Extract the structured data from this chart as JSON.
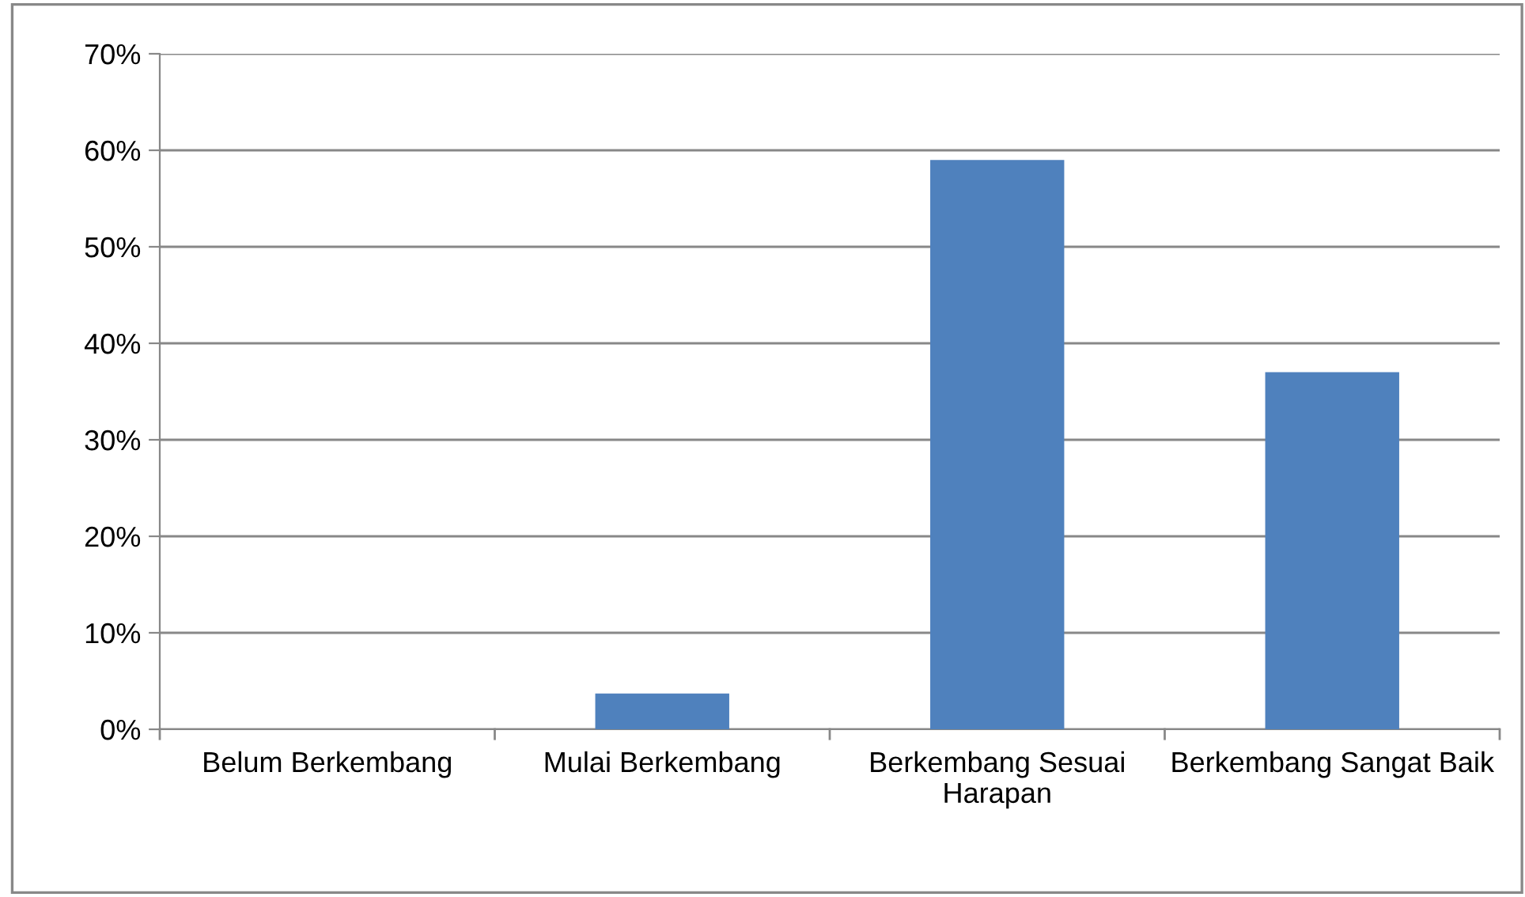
{
  "chart_data": {
    "type": "bar",
    "categories": [
      "Belum Berkembang",
      "Mulai Berkembang",
      "Berkembang Sesuai Harapan",
      "Berkembang Sangat Baik"
    ],
    "values": [
      0,
      3.7,
      59,
      37
    ],
    "color": "#4f81bd",
    "ylim": [
      0,
      70
    ],
    "yticks": [
      {
        "value": 0,
        "label": "0%"
      },
      {
        "value": 10,
        "label": "10%"
      },
      {
        "value": 20,
        "label": "20%"
      },
      {
        "value": 30,
        "label": "30%"
      },
      {
        "value": 40,
        "label": "40%"
      },
      {
        "value": 50,
        "label": "50%"
      },
      {
        "value": 60,
        "label": "60%"
      },
      {
        "value": 70,
        "label": "70%"
      }
    ],
    "grid": "y",
    "legend": false
  }
}
